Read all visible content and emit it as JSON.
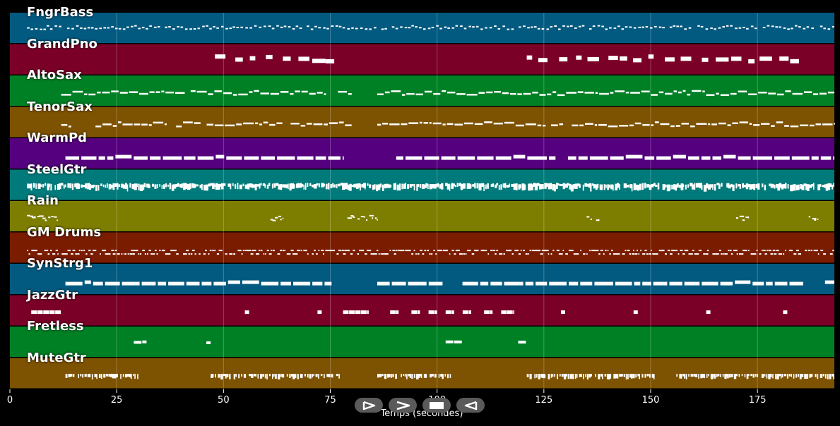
{
  "colors": {
    "background": "#000000",
    "note": "#ffffff",
    "track_colors": [
      "#035a80",
      "#7a0028",
      "#008025",
      "#7d5200",
      "#55007e",
      "#007a7a",
      "#7d7d00",
      "#7a1c00"
    ]
  },
  "chart_data": {
    "type": "piano-roll",
    "xlabel": "Temps (secondes)",
    "xlim": [
      0,
      193
    ],
    "xticks": [
      0,
      25,
      50,
      75,
      100,
      125,
      150,
      175
    ],
    "grid": true,
    "tracks": [
      {
        "name": "FngrBass",
        "color": "#035a80",
        "pattern": "dense-small",
        "active": [
          [
            4,
            193
          ]
        ]
      },
      {
        "name": "GrandPno",
        "color": "#7a0028",
        "pattern": "block",
        "active": [
          [
            48,
            78
          ],
          [
            121,
            186
          ]
        ]
      },
      {
        "name": "AltoSax",
        "color": "#008025",
        "pattern": "melody",
        "active": [
          [
            12,
            80
          ],
          [
            86,
            193
          ]
        ]
      },
      {
        "name": "TenorSax",
        "color": "#7d5200",
        "pattern": "melody",
        "active": [
          [
            12,
            80
          ],
          [
            86,
            193
          ]
        ]
      },
      {
        "name": "WarmPd",
        "color": "#55007e",
        "pattern": "pad",
        "active": [
          [
            13,
            78
          ],
          [
            86,
            193
          ]
        ]
      },
      {
        "name": "SteelGtr",
        "color": "#007a7a",
        "pattern": "strum",
        "active": [
          [
            4,
            193
          ]
        ]
      },
      {
        "name": "Rain",
        "color": "#7d7d00",
        "pattern": "sparse-fx",
        "active": [
          [
            4,
            11
          ],
          [
            61,
            64
          ],
          [
            78,
            86
          ],
          [
            135,
            138
          ],
          [
            170,
            173
          ],
          [
            187,
            189
          ]
        ]
      },
      {
        "name": "GM Drums",
        "color": "#7a1c00",
        "pattern": "drums",
        "active": [
          [
            4,
            193
          ]
        ]
      },
      {
        "name": "SynStrg1",
        "color": "#035a80",
        "pattern": "pad",
        "active": [
          [
            13,
            78
          ],
          [
            86,
            193
          ]
        ]
      },
      {
        "name": "JazzGtr",
        "color": "#7a0028",
        "pattern": "sparse-notes",
        "active": [
          [
            5,
            12
          ],
          [
            55,
            56
          ],
          [
            72,
            73
          ],
          [
            78,
            84
          ],
          [
            89,
            91
          ],
          [
            94,
            96
          ],
          [
            98,
            100
          ],
          [
            102,
            104
          ],
          [
            106,
            108
          ],
          [
            111,
            113
          ],
          [
            115,
            118
          ],
          [
            129,
            130
          ],
          [
            146,
            147
          ],
          [
            163,
            164
          ],
          [
            181,
            182
          ]
        ]
      },
      {
        "name": "Fretless",
        "color": "#008025",
        "pattern": "rare",
        "active": [
          [
            29,
            32
          ],
          [
            46,
            47
          ],
          [
            102,
            106
          ],
          [
            119,
            121
          ]
        ]
      },
      {
        "name": "MuteGtr",
        "color": "#7d5200",
        "pattern": "mute",
        "active": [
          [
            13,
            30
          ],
          [
            47,
            77
          ],
          [
            86,
            103
          ],
          [
            121,
            151
          ],
          [
            156,
            193
          ]
        ]
      }
    ]
  },
  "controls": [
    {
      "name": "play-button",
      "icon": "play-icon"
    },
    {
      "name": "fast-forward-button",
      "icon": "fast-forward-icon"
    },
    {
      "name": "stop-button",
      "icon": "stop-icon"
    },
    {
      "name": "rewind-button",
      "icon": "rewind-icon"
    }
  ]
}
